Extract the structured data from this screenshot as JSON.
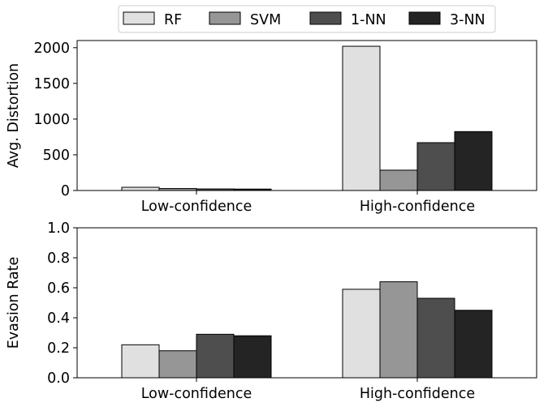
{
  "chart_data": [
    {
      "type": "bar",
      "categories": [
        "Low-confidence",
        "High-confidence"
      ],
      "ylabel": "Avg. Distortion",
      "xlabel": "",
      "ylim": [
        0,
        2100
      ],
      "yticks": [
        0,
        500,
        1000,
        1500,
        2000
      ],
      "series": [
        {
          "name": "RF",
          "color": "#e0e0e0",
          "values": [
            45,
            2020
          ]
        },
        {
          "name": "SVM",
          "color": "#969696",
          "values": [
            28,
            285
          ]
        },
        {
          "name": "1-NN",
          "color": "#4e4e4e",
          "values": [
            22,
            670
          ]
        },
        {
          "name": "3-NN",
          "color": "#242424",
          "values": [
            20,
            825
          ]
        }
      ]
    },
    {
      "type": "bar",
      "categories": [
        "Low-confidence",
        "High-confidence"
      ],
      "ylabel": "Evasion Rate",
      "xlabel": "",
      "ylim": [
        0,
        1.0
      ],
      "yticks": [
        0.0,
        0.2,
        0.4,
        0.6,
        0.8,
        1.0
      ],
      "series": [
        {
          "name": "RF",
          "color": "#e0e0e0",
          "values": [
            0.22,
            0.59
          ]
        },
        {
          "name": "SVM",
          "color": "#969696",
          "values": [
            0.18,
            0.64
          ]
        },
        {
          "name": "1-NN",
          "color": "#4e4e4e",
          "values": [
            0.29,
            0.53
          ]
        },
        {
          "name": "3-NN",
          "color": "#242424",
          "values": [
            0.28,
            0.45
          ]
        }
      ]
    }
  ],
  "legend": {
    "placement": "top-center",
    "entries": [
      "RF",
      "SVM",
      "1-NN",
      "3-NN"
    ]
  }
}
